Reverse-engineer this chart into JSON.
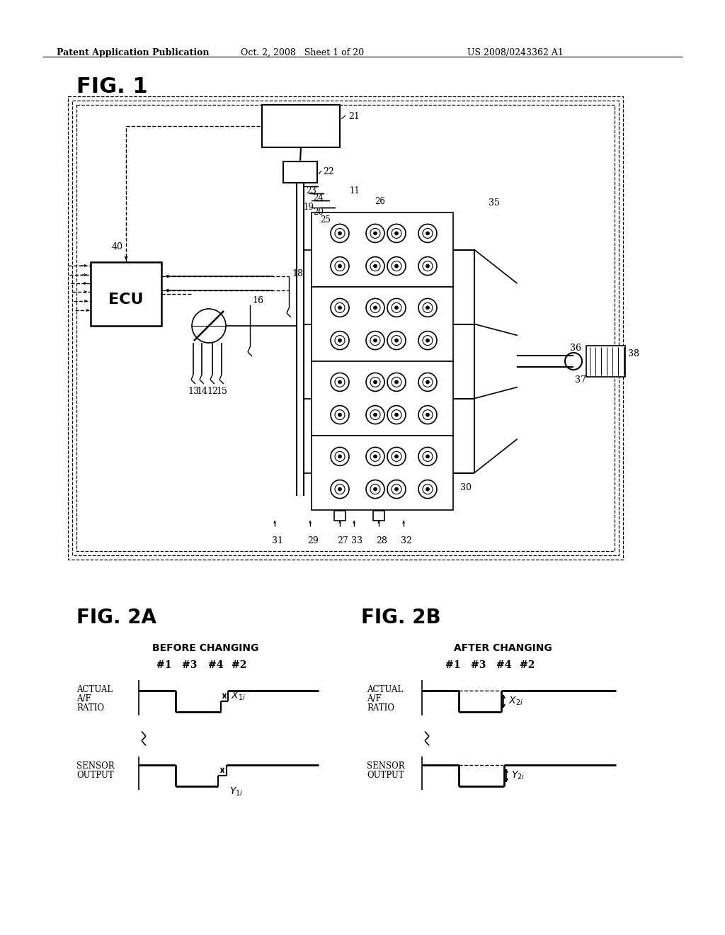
{
  "header_left": "Patent Application Publication",
  "header_mid": "Oct. 2, 2008   Sheet 1 of 20",
  "header_right": "US 2008/0243362 A1",
  "fig1_title": "FIG. 1",
  "fig2a_title": "FIG. 2A",
  "fig2b_title": "FIG. 2B",
  "fig2a_subtitle": "BEFORE CHANGING",
  "fig2b_subtitle": "AFTER CHANGING",
  "cylinders": [
    "#1",
    "#3",
    "#4",
    "#2"
  ],
  "bg_color": "#ffffff",
  "line_color": "#000000"
}
